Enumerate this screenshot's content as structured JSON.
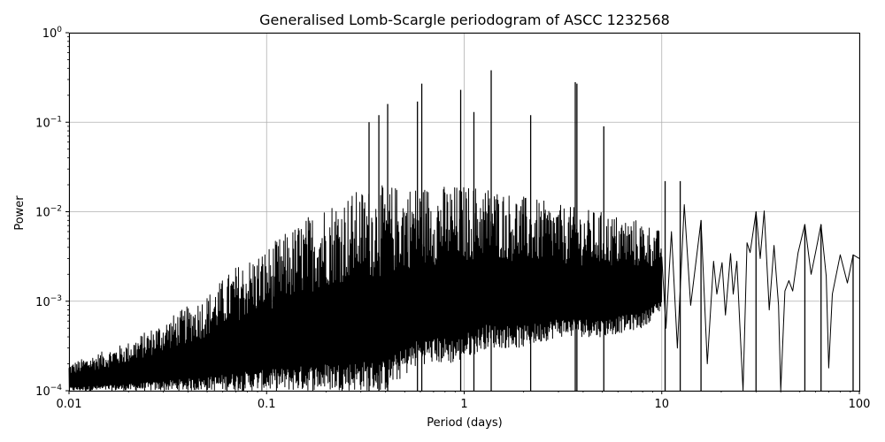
{
  "chart_data": {
    "type": "line",
    "title": "Generalised Lomb-Scargle periodogram of ASCC 1232568",
    "xlabel": "Period (days)",
    "ylabel": "Power",
    "xscale": "log",
    "yscale": "log",
    "xlim": [
      0.01,
      100
    ],
    "ylim": [
      0.0001,
      1
    ],
    "grid": true,
    "line_color": "#000000",
    "x_ticks": [
      {
        "value": 0.01,
        "label": "0.01"
      },
      {
        "value": 0.1,
        "label": "0.1"
      },
      {
        "value": 1,
        "label": "1"
      },
      {
        "value": 10,
        "label": "10"
      },
      {
        "value": 100,
        "label": "100"
      }
    ],
    "y_ticks": [
      {
        "value": 0.0001,
        "base": "10",
        "exp": "−4"
      },
      {
        "value": 0.001,
        "base": "10",
        "exp": "−3"
      },
      {
        "value": 0.01,
        "base": "10",
        "exp": "−2"
      },
      {
        "value": 0.1,
        "base": "10",
        "exp": "−1"
      },
      {
        "value": 1,
        "base": "10",
        "exp": "0"
      }
    ],
    "series": [
      {
        "peaks": [
          {
            "x": 0.61,
            "y": 0.27
          },
          {
            "x": 0.58,
            "y": 0.17
          },
          {
            "x": 0.41,
            "y": 0.16
          },
          {
            "x": 0.37,
            "y": 0.12
          },
          {
            "x": 0.33,
            "y": 0.1
          },
          {
            "x": 0.96,
            "y": 0.23
          },
          {
            "x": 1.37,
            "y": 0.38
          },
          {
            "x": 1.12,
            "y": 0.13
          },
          {
            "x": 2.17,
            "y": 0.12
          },
          {
            "x": 3.65,
            "y": 0.28
          },
          {
            "x": 3.72,
            "y": 0.27
          },
          {
            "x": 5.09,
            "y": 0.09
          },
          {
            "x": 10.4,
            "y": 0.022
          },
          {
            "x": 12.4,
            "y": 0.022
          },
          {
            "x": 15.8,
            "y": 0.008
          },
          {
            "x": 30.0,
            "y": 0.01
          },
          {
            "x": 53.0,
            "y": 0.0072
          },
          {
            "x": 64.0,
            "y": 0.0072
          },
          {
            "x": 93.0,
            "y": 0.0033
          }
        ],
        "envelope": [
          {
            "x": 0.01,
            "lo": 0.0001,
            "hi": 0.0002
          },
          {
            "x": 0.02,
            "lo": 0.0001,
            "hi": 0.00035
          },
          {
            "x": 0.03,
            "lo": 0.0001,
            "hi": 0.0006
          },
          {
            "x": 0.05,
            "lo": 0.0001,
            "hi": 0.0012
          },
          {
            "x": 0.07,
            "lo": 0.0001,
            "hi": 0.0025
          },
          {
            "x": 0.1,
            "lo": 0.0001,
            "hi": 0.004
          },
          {
            "x": 0.15,
            "lo": 0.0001,
            "hi": 0.008
          },
          {
            "x": 0.2,
            "lo": 0.0001,
            "hi": 0.013
          },
          {
            "x": 0.3,
            "lo": 0.0001,
            "hi": 0.018
          },
          {
            "x": 0.4,
            "lo": 0.0001,
            "hi": 0.02
          },
          {
            "x": 0.6,
            "lo": 0.0002,
            "hi": 0.02
          },
          {
            "x": 0.9,
            "lo": 0.0002,
            "hi": 0.02
          },
          {
            "x": 1.3,
            "lo": 0.0003,
            "hi": 0.02
          },
          {
            "x": 2.0,
            "lo": 0.0003,
            "hi": 0.015
          },
          {
            "x": 3.0,
            "lo": 0.0004,
            "hi": 0.012
          },
          {
            "x": 5.0,
            "lo": 0.0004,
            "hi": 0.01
          },
          {
            "x": 8.0,
            "lo": 0.0005,
            "hi": 0.008
          },
          {
            "x": 10.0,
            "lo": 0.0008,
            "hi": 0.006
          }
        ],
        "tail_points": [
          {
            "x": 10.5,
            "y": 0.0005
          },
          {
            "x": 11.2,
            "y": 0.006
          },
          {
            "x": 12.0,
            "y": 0.0003
          },
          {
            "x": 13.0,
            "y": 0.012
          },
          {
            "x": 14.0,
            "y": 0.0009
          },
          {
            "x": 15.8,
            "y": 0.008
          },
          {
            "x": 17.0,
            "y": 0.0002
          },
          {
            "x": 18.3,
            "y": 0.0028
          },
          {
            "x": 19.0,
            "y": 0.0012
          },
          {
            "x": 20.2,
            "y": 0.0027
          },
          {
            "x": 21.0,
            "y": 0.0007
          },
          {
            "x": 22.3,
            "y": 0.0034
          },
          {
            "x": 23.0,
            "y": 0.0012
          },
          {
            "x": 24.0,
            "y": 0.0028
          },
          {
            "x": 25.0,
            "y": 0.0004
          },
          {
            "x": 25.8,
            "y": 0.0001
          },
          {
            "x": 27.0,
            "y": 0.0045
          },
          {
            "x": 28.0,
            "y": 0.0035
          },
          {
            "x": 30.0,
            "y": 0.01
          },
          {
            "x": 31.5,
            "y": 0.003
          },
          {
            "x": 33.0,
            "y": 0.0102
          },
          {
            "x": 35.0,
            "y": 0.0008
          },
          {
            "x": 37.0,
            "y": 0.0042
          },
          {
            "x": 39.0,
            "y": 0.0009
          },
          {
            "x": 40.0,
            "y": 0.0001
          },
          {
            "x": 42.0,
            "y": 0.0013
          },
          {
            "x": 44.0,
            "y": 0.0017
          },
          {
            "x": 46.0,
            "y": 0.0013
          },
          {
            "x": 49.0,
            "y": 0.0035
          },
          {
            "x": 53.0,
            "y": 0.0072
          },
          {
            "x": 57.0,
            "y": 0.002
          },
          {
            "x": 60.0,
            "y": 0.0035
          },
          {
            "x": 64.0,
            "y": 0.0072
          },
          {
            "x": 68.0,
            "y": 0.0019
          },
          {
            "x": 70.0,
            "y": 0.00018
          },
          {
            "x": 73.0,
            "y": 0.0012
          },
          {
            "x": 80.0,
            "y": 0.0033
          },
          {
            "x": 87.0,
            "y": 0.0016
          },
          {
            "x": 93.0,
            "y": 0.0033
          },
          {
            "x": 100.0,
            "y": 0.003
          }
        ]
      }
    ]
  }
}
